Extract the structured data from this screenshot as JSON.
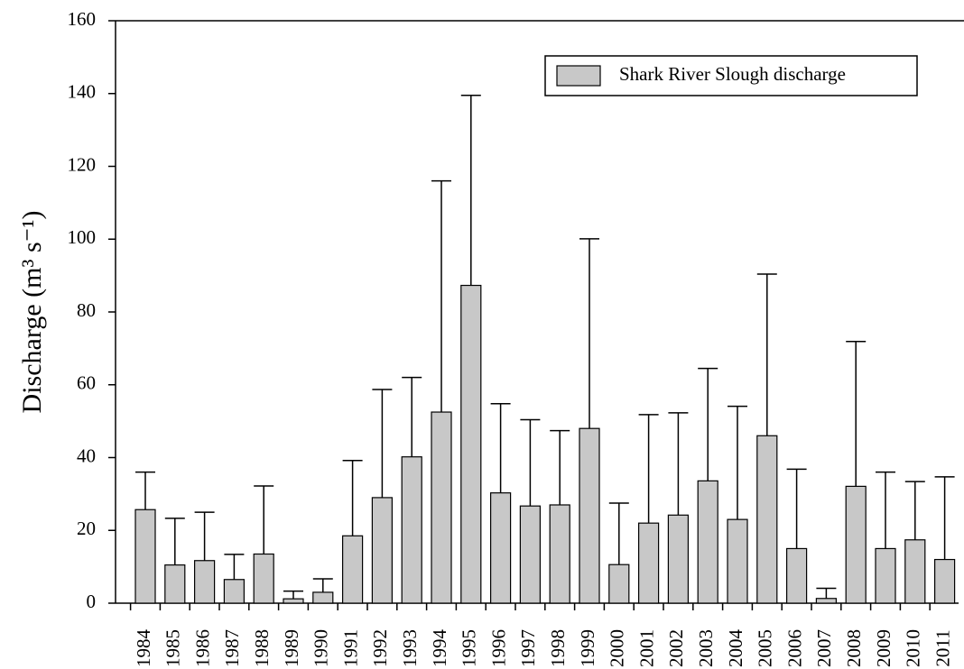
{
  "chart_data": {
    "type": "bar",
    "y_label": "Discharge (m³ s⁻¹)",
    "categories": [
      "1984",
      "1985",
      "1986",
      "1987",
      "1988",
      "1989",
      "1990",
      "1991",
      "1992",
      "1993",
      "1994",
      "1995",
      "1996",
      "1997",
      "1998",
      "1999",
      "2000",
      "2001",
      "2002",
      "2003",
      "2004",
      "2005",
      "2006",
      "2007",
      "2008",
      "2009",
      "2010",
      "2011"
    ],
    "series": [
      {
        "name": "Shark River Slough discharge",
        "color": "#c8c8c8",
        "values": [
          25.7,
          10.5,
          11.7,
          6.5,
          13.5,
          1.2,
          3,
          18.5,
          29,
          40.2,
          52.5,
          87.3,
          30.3,
          26.7,
          27,
          48,
          10.6,
          22,
          24.2,
          33.6,
          23,
          46,
          15,
          1.3,
          32.1,
          15,
          17.4,
          12
        ],
        "errors": [
          10.3,
          12.8,
          13.3,
          6.9,
          18.7,
          2.1,
          3.7,
          20.7,
          29.7,
          21.8,
          63.5,
          52.2,
          24.5,
          23.7,
          20.4,
          52.1,
          16.9,
          29.8,
          28.1,
          30.9,
          31.1,
          44.4,
          21.8,
          2.8,
          39.8,
          21,
          16,
          22.7
        ]
      }
    ],
    "ylim": [
      0,
      160
    ],
    "yticks": [
      0,
      20,
      40,
      60,
      80,
      100,
      120,
      140,
      160
    ]
  }
}
